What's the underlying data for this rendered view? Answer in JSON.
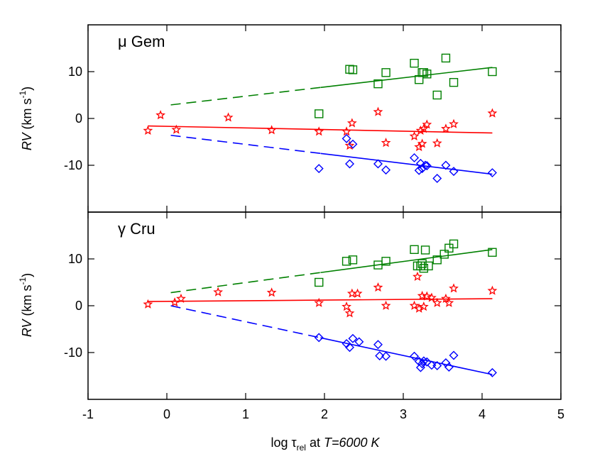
{
  "chart_data": {
    "type": "scatter",
    "x_range": [
      -1,
      5
    ],
    "x_ticks": [
      -1,
      0,
      1,
      2,
      3,
      4,
      5
    ],
    "x_tick_labels": [
      "-1",
      "0",
      "1",
      "2",
      "3",
      "4",
      "5"
    ],
    "xlabel": {
      "prefix": "log ",
      "tau": "τ",
      "tau_subscript": "rel",
      "middle": " at ",
      "italic_part": "T=6000 K"
    },
    "ylabel": {
      "italic_part": "RV",
      "unit_open": " (km s",
      "unit_exp": "-1",
      "unit_close": ")"
    },
    "colors": {
      "green": "#008000",
      "red": "#ff0000",
      "blue": "#0000ff"
    },
    "panels": [
      {
        "title": "μ Gem",
        "y_range": [
          -20,
          20
        ],
        "y_ticks": [
          10,
          0,
          -10
        ],
        "y_tick_labels": [
          "10",
          "0",
          "-10"
        ],
        "series": [
          {
            "name": "green squares",
            "color": "green",
            "marker": "square",
            "points": [
              [
                1.93,
                1.0
              ],
              [
                2.32,
                10.5
              ],
              [
                2.36,
                10.4
              ],
              [
                2.68,
                7.4
              ],
              [
                2.78,
                9.8
              ],
              [
                3.14,
                11.8
              ],
              [
                3.2,
                8.3
              ],
              [
                3.24,
                9.8
              ],
              [
                3.26,
                9.8
              ],
              [
                3.3,
                9.5
              ],
              [
                3.43,
                5.0
              ],
              [
                3.54,
                12.9
              ],
              [
                3.64,
                7.7
              ],
              [
                4.13,
                10.0
              ]
            ],
            "fit": {
              "x": [
                0.05,
                4.13
              ],
              "y": [
                2.9,
                10.9
              ],
              "dashed_until": 1.95
            }
          },
          {
            "name": "red stars",
            "color": "red",
            "marker": "star",
            "points": [
              [
                -0.24,
                -2.6
              ],
              [
                -0.08,
                0.7
              ],
              [
                0.12,
                -2.4
              ],
              [
                0.78,
                0.2
              ],
              [
                1.33,
                -2.5
              ],
              [
                1.93,
                -2.8
              ],
              [
                2.28,
                -2.8
              ],
              [
                2.32,
                -5.8
              ],
              [
                2.35,
                -1.0
              ],
              [
                2.68,
                1.4
              ],
              [
                2.78,
                -5.2
              ],
              [
                3.14,
                -3.8
              ],
              [
                3.2,
                -6.1
              ],
              [
                3.22,
                -2.6
              ],
              [
                3.24,
                -5.4
              ],
              [
                3.26,
                -2.2
              ],
              [
                3.3,
                -1.3
              ],
              [
                3.43,
                -5.3
              ],
              [
                3.54,
                -2.2
              ],
              [
                3.64,
                -1.2
              ],
              [
                4.13,
                1.1
              ]
            ],
            "fit": {
              "x": [
                -0.24,
                4.13
              ],
              "y": [
                -1.6,
                -3.1
              ],
              "dashed_until": null
            }
          },
          {
            "name": "blue diamonds",
            "color": "blue",
            "marker": "diamond",
            "points": [
              [
                1.93,
                -10.7
              ],
              [
                2.28,
                -4.3
              ],
              [
                2.32,
                -9.7
              ],
              [
                2.36,
                -5.5
              ],
              [
                2.68,
                -9.7
              ],
              [
                2.78,
                -11.0
              ],
              [
                3.14,
                -8.4
              ],
              [
                3.2,
                -11.1
              ],
              [
                3.22,
                -9.6
              ],
              [
                3.24,
                -10.7
              ],
              [
                3.28,
                -10.0
              ],
              [
                3.3,
                -10.1
              ],
              [
                3.43,
                -12.8
              ],
              [
                3.54,
                -10.0
              ],
              [
                3.64,
                -11.3
              ],
              [
                4.13,
                -11.6
              ]
            ],
            "fit": {
              "x": [
                0.05,
                4.13
              ],
              "y": [
                -3.6,
                -11.9
              ],
              "dashed_until": 1.95
            }
          }
        ]
      },
      {
        "title": "γ Cru",
        "y_range": [
          -20,
          20
        ],
        "y_ticks": [
          10,
          0,
          -10
        ],
        "y_tick_labels": [
          "10",
          "0",
          "-10"
        ],
        "series": [
          {
            "name": "green squares",
            "color": "green",
            "marker": "square",
            "points": [
              [
                1.93,
                5.0
              ],
              [
                2.28,
                9.5
              ],
              [
                2.36,
                9.8
              ],
              [
                2.68,
                8.7
              ],
              [
                2.78,
                9.5
              ],
              [
                3.14,
                12.0
              ],
              [
                3.18,
                8.5
              ],
              [
                3.22,
                8.5
              ],
              [
                3.24,
                9.0
              ],
              [
                3.26,
                8.0
              ],
              [
                3.28,
                11.9
              ],
              [
                3.32,
                8.5
              ],
              [
                3.43,
                9.8
              ],
              [
                3.52,
                11.0
              ],
              [
                3.58,
                12.3
              ],
              [
                3.64,
                13.2
              ],
              [
                4.13,
                11.4
              ]
            ],
            "fit": {
              "x": [
                0.05,
                4.13
              ],
              "y": [
                2.8,
                12.0
              ],
              "dashed_until": 1.95
            }
          },
          {
            "name": "red stars",
            "color": "red",
            "marker": "star",
            "points": [
              [
                -0.24,
                0.3
              ],
              [
                0.1,
                0.7
              ],
              [
                0.18,
                1.5
              ],
              [
                0.65,
                2.9
              ],
              [
                1.33,
                2.8
              ],
              [
                1.93,
                0.6
              ],
              [
                2.28,
                -0.2
              ],
              [
                2.32,
                -1.6
              ],
              [
                2.35,
                2.6
              ],
              [
                2.42,
                2.6
              ],
              [
                2.68,
                3.9
              ],
              [
                2.78,
                0.0
              ],
              [
                3.14,
                0.0
              ],
              [
                3.18,
                6.2
              ],
              [
                3.2,
                -0.6
              ],
              [
                3.24,
                2.1
              ],
              [
                3.26,
                -0.2
              ],
              [
                3.3,
                2.0
              ],
              [
                3.36,
                1.7
              ],
              [
                3.43,
                0.6
              ],
              [
                3.54,
                1.5
              ],
              [
                3.58,
                0.6
              ],
              [
                3.64,
                3.7
              ],
              [
                4.13,
                3.2
              ]
            ],
            "fit": {
              "x": [
                -0.24,
                4.13
              ],
              "y": [
                0.9,
                1.5
              ],
              "dashed_until": null
            }
          },
          {
            "name": "blue diamonds",
            "color": "blue",
            "marker": "diamond",
            "points": [
              [
                1.93,
                -6.8
              ],
              [
                2.28,
                -8.1
              ],
              [
                2.32,
                -8.9
              ],
              [
                2.36,
                -7.0
              ],
              [
                2.44,
                -7.7
              ],
              [
                2.68,
                -8.3
              ],
              [
                2.7,
                -10.7
              ],
              [
                2.78,
                -10.8
              ],
              [
                3.14,
                -10.8
              ],
              [
                3.2,
                -11.9
              ],
              [
                3.22,
                -13.2
              ],
              [
                3.24,
                -12.4
              ],
              [
                3.26,
                -11.8
              ],
              [
                3.3,
                -12.0
              ],
              [
                3.36,
                -12.7
              ],
              [
                3.43,
                -12.8
              ],
              [
                3.54,
                -12.2
              ],
              [
                3.58,
                -13.1
              ],
              [
                3.64,
                -10.6
              ],
              [
                4.13,
                -14.3
              ]
            ],
            "fit": {
              "x": [
                0.05,
                4.13
              ],
              "y": [
                0.0,
                -14.7
              ],
              "dashed_until": 1.95
            }
          }
        ]
      }
    ]
  }
}
